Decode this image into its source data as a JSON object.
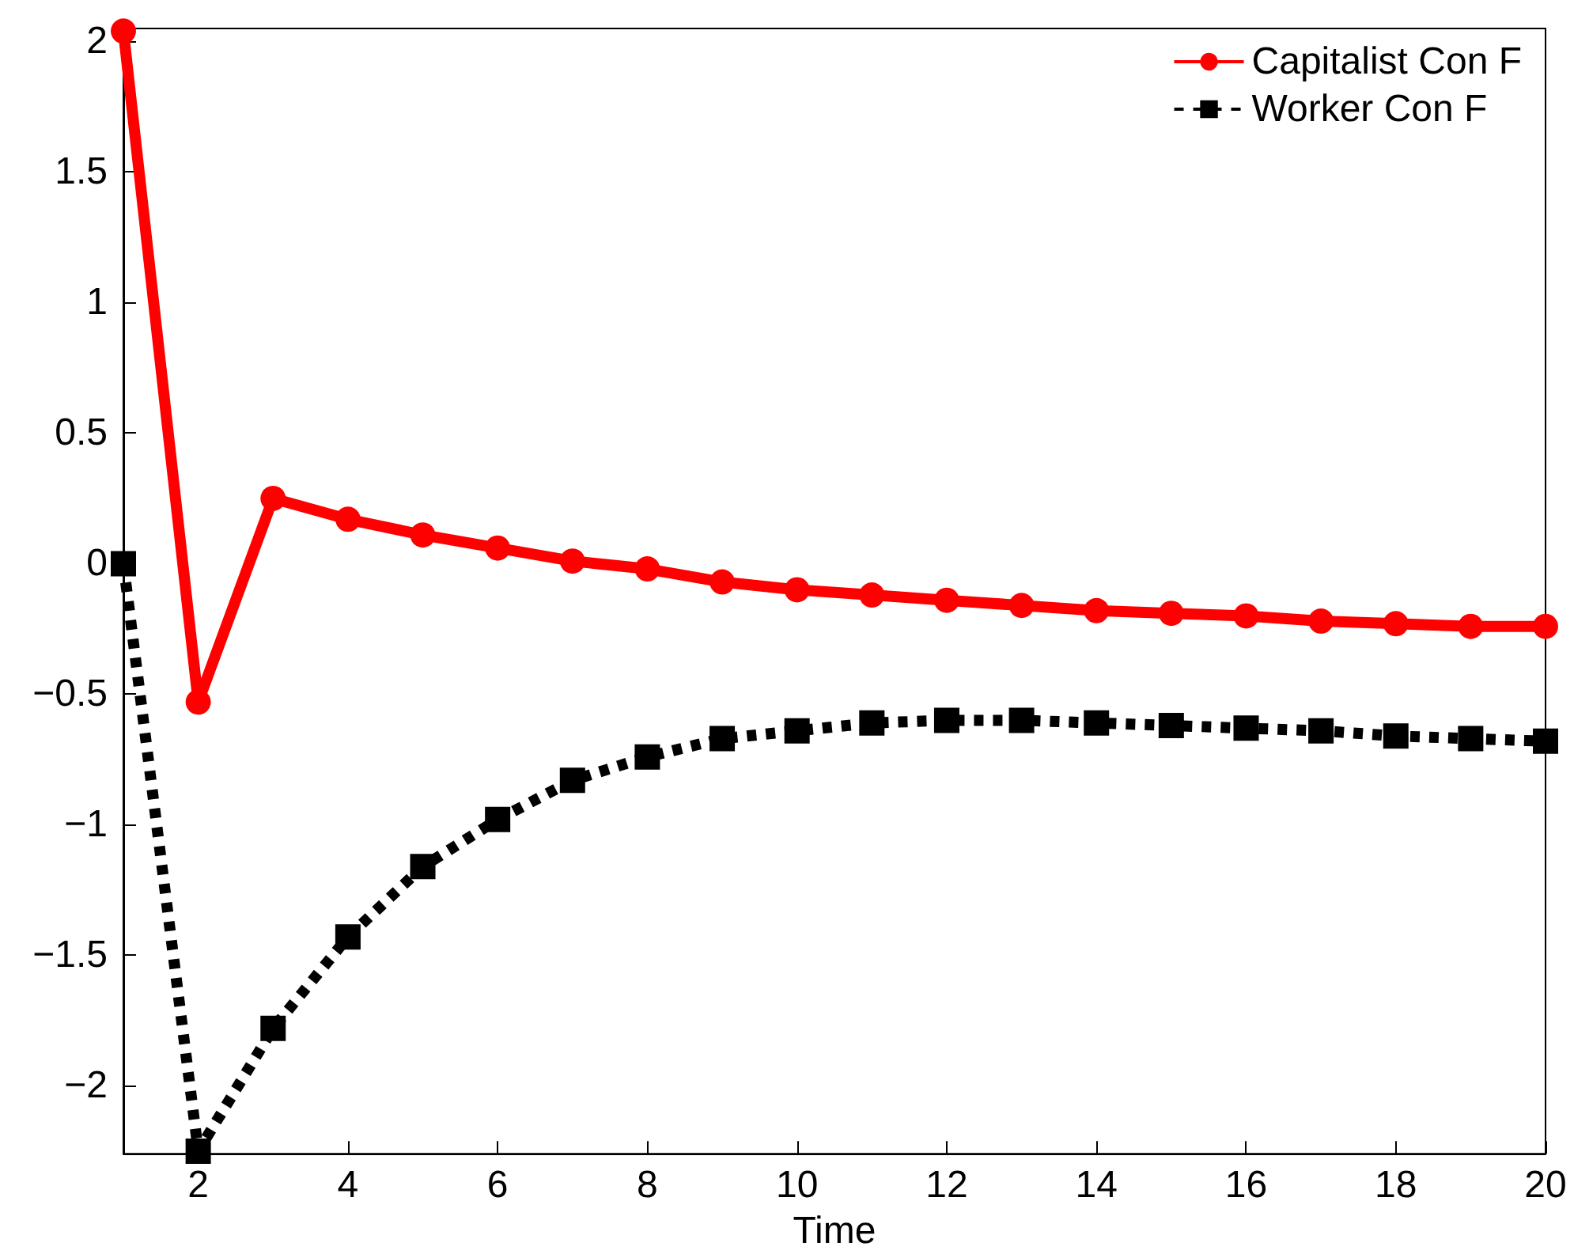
{
  "chart_data": {
    "type": "line",
    "xlabel": "Time",
    "x": [
      1,
      2,
      3,
      4,
      5,
      6,
      7,
      8,
      9,
      10,
      11,
      12,
      13,
      14,
      15,
      16,
      17,
      18,
      19,
      20
    ],
    "series": [
      {
        "name": "Capitalist Con F",
        "color": "#ff0000",
        "marker": "circle",
        "line_style": "solid",
        "values": [
          2.04,
          -0.53,
          0.25,
          0.17,
          0.11,
          0.06,
          0.01,
          -0.02,
          -0.07,
          -0.1,
          -0.12,
          -0.14,
          -0.16,
          -0.18,
          -0.19,
          -0.2,
          -0.22,
          -0.23,
          -0.24,
          -0.24
        ]
      },
      {
        "name": "Worker Con F",
        "color": "#000000",
        "marker": "square",
        "line_style": "dotted",
        "values": [
          0,
          -2.25,
          -1.78,
          -1.43,
          -1.16,
          -0.98,
          -0.83,
          -0.74,
          -0.67,
          -0.64,
          -0.61,
          -0.6,
          -0.6,
          -0.61,
          -0.62,
          -0.63,
          -0.64,
          -0.66,
          -0.67,
          -0.68
        ]
      }
    ],
    "xlim": [
      1,
      20
    ],
    "xticks": [
      2,
      4,
      6,
      8,
      10,
      12,
      14,
      16,
      18,
      20
    ],
    "ylim": [
      -2.26,
      2.05
    ],
    "yticks": [
      {
        "value": -2,
        "label": "−2"
      },
      {
        "value": -1.5,
        "label": "−1.5"
      },
      {
        "value": -1,
        "label": "−1"
      },
      {
        "value": -0.5,
        "label": "−0.5"
      },
      0,
      0.5,
      1,
      1.5,
      2
    ],
    "grid": false,
    "legend": "top right"
  }
}
